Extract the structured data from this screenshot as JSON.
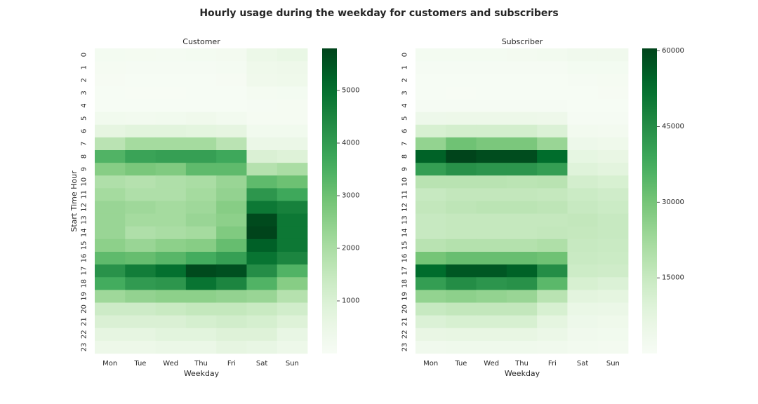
{
  "title": "Hourly usage during the weekday for customers and subscribers",
  "chart_data": [
    {
      "type": "heatmap",
      "title": "Customer",
      "xlabel": "Weekday",
      "ylabel": "Start Time Hour",
      "x": [
        "Mon",
        "Tue",
        "Wed",
        "Thu",
        "Fri",
        "Sat",
        "Sun"
      ],
      "y": [
        "0",
        "1",
        "2",
        "3",
        "4",
        "5",
        "6",
        "7",
        "8",
        "9",
        "10",
        "11",
        "12",
        "13",
        "14",
        "15",
        "16",
        "17",
        "18",
        "19",
        "20",
        "21",
        "22",
        "23"
      ],
      "colorbar": {
        "range": [
          0,
          5800
        ],
        "ticks": [
          1000,
          2000,
          3000,
          4000,
          5000
        ],
        "colormap": "Greens"
      },
      "values": [
        [
          150,
          140,
          120,
          150,
          180,
          450,
          550
        ],
        [
          90,
          70,
          70,
          80,
          110,
          330,
          380
        ],
        [
          60,
          40,
          40,
          50,
          60,
          300,
          330
        ],
        [
          30,
          20,
          20,
          30,
          40,
          140,
          150
        ],
        [
          40,
          30,
          30,
          40,
          40,
          80,
          90
        ],
        [
          230,
          210,
          250,
          300,
          200,
          100,
          100
        ],
        [
          700,
          800,
          800,
          750,
          700,
          250,
          250
        ],
        [
          1700,
          2100,
          2100,
          2100,
          1700,
          500,
          500
        ],
        [
          3400,
          3800,
          3900,
          3900,
          3700,
          1000,
          900
        ],
        [
          2600,
          2800,
          2700,
          3200,
          3200,
          1800,
          2000
        ],
        [
          1900,
          1800,
          1900,
          2000,
          2300,
          3200,
          3000
        ],
        [
          2100,
          1900,
          1900,
          2100,
          2400,
          4100,
          3700
        ],
        [
          2300,
          2200,
          2100,
          2200,
          2600,
          4800,
          4600
        ],
        [
          2300,
          2100,
          2100,
          2300,
          2500,
          5700,
          4800
        ],
        [
          2300,
          1900,
          2000,
          2100,
          2700,
          5800,
          4800
        ],
        [
          2500,
          2300,
          2500,
          2600,
          3100,
          5300,
          4800
        ],
        [
          3200,
          3100,
          3300,
          3600,
          3900,
          4900,
          4500
        ],
        [
          4200,
          4700,
          5000,
          5700,
          5600,
          4300,
          3400
        ],
        [
          3600,
          4000,
          4100,
          4900,
          4500,
          3400,
          2600
        ],
        [
          2200,
          2400,
          2500,
          2500,
          2400,
          2300,
          1800
        ],
        [
          1300,
          1300,
          1400,
          1500,
          1500,
          1400,
          1200
        ],
        [
          1000,
          1000,
          1000,
          1100,
          1200,
          1100,
          900
        ],
        [
          700,
          700,
          800,
          800,
          900,
          900,
          600
        ],
        [
          400,
          400,
          500,
          500,
          700,
          600,
          400
        ]
      ]
    },
    {
      "type": "heatmap",
      "title": "Subscriber",
      "xlabel": "Weekday",
      "ylabel": "",
      "x": [
        "Mon",
        "Tue",
        "Wed",
        "Thu",
        "Fri",
        "Sat",
        "Sun"
      ],
      "y": [
        "0",
        "1",
        "2",
        "3",
        "4",
        "5",
        "6",
        "7",
        "8",
        "9",
        "10",
        "11",
        "12",
        "13",
        "14",
        "15",
        "16",
        "17",
        "18",
        "19",
        "20",
        "21",
        "22",
        "23"
      ],
      "colorbar": {
        "range": [
          0,
          60500
        ],
        "ticks": [
          15000,
          30000,
          45000,
          60000
        ],
        "colormap": "Greens"
      },
      "values": [
        [
          1500,
          1500,
          1600,
          1700,
          2000,
          2800,
          2900
        ],
        [
          700,
          700,
          800,
          800,
          900,
          1500,
          1600
        ],
        [
          400,
          400,
          400,
          500,
          500,
          900,
          1000
        ],
        [
          300,
          200,
          300,
          300,
          300,
          500,
          600
        ],
        [
          700,
          700,
          700,
          700,
          700,
          400,
          400
        ],
        [
          4000,
          4300,
          4300,
          4200,
          3800,
          900,
          800
        ],
        [
          11000,
          12000,
          12000,
          12000,
          10000,
          2000,
          1800
        ],
        [
          25000,
          31000,
          29000,
          29000,
          24000,
          4000,
          3500
        ],
        [
          55000,
          60500,
          59000,
          59000,
          53000,
          7000,
          6000
        ],
        [
          41000,
          44000,
          43000,
          43000,
          41000,
          9000,
          8000
        ],
        [
          18000,
          18000,
          18000,
          17500,
          18000,
          12000,
          11000
        ],
        [
          15000,
          16000,
          16000,
          16000,
          15500,
          14000,
          13000
        ],
        [
          16000,
          17000,
          17500,
          17500,
          17000,
          15000,
          14000
        ],
        [
          15000,
          15500,
          15500,
          15500,
          15500,
          16000,
          15000
        ],
        [
          15000,
          15500,
          15500,
          15500,
          16000,
          15500,
          15000
        ],
        [
          18000,
          19000,
          19000,
          19000,
          20000,
          15000,
          14500
        ],
        [
          30000,
          32000,
          32000,
          32000,
          31000,
          14500,
          14000
        ],
        [
          53000,
          57000,
          57000,
          55000,
          45000,
          13500,
          13000
        ],
        [
          41000,
          45000,
          43000,
          44000,
          34000,
          11000,
          10000
        ],
        [
          25000,
          26000,
          25000,
          24000,
          18000,
          8000,
          7500
        ],
        [
          15000,
          16000,
          16000,
          16000,
          11000,
          5500,
          5000
        ],
        [
          10000,
          11000,
          11000,
          11000,
          7500,
          4000,
          3500
        ],
        [
          6000,
          6500,
          6500,
          6500,
          5000,
          2800,
          2500
        ],
        [
          3000,
          3200,
          3200,
          3300,
          3000,
          2000,
          1800
        ]
      ]
    }
  ]
}
